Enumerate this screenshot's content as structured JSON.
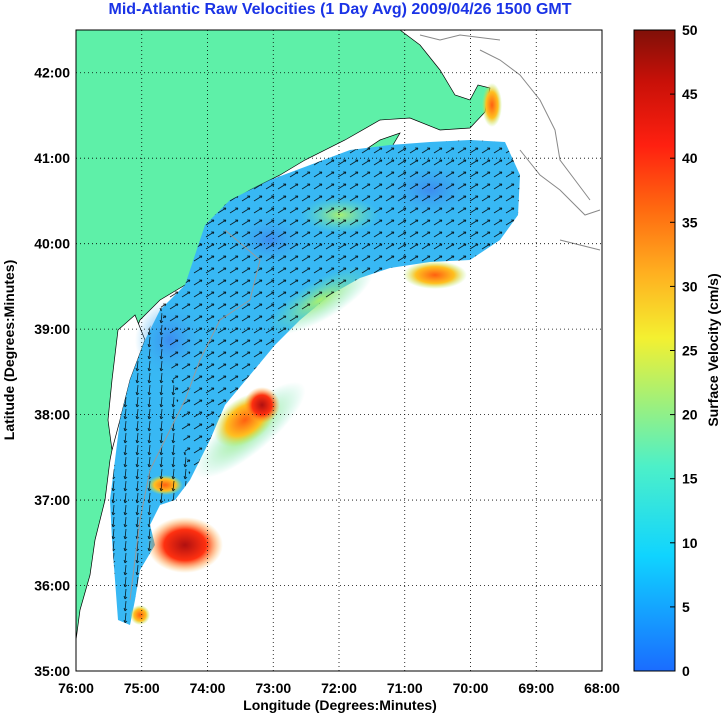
{
  "title": "Mid-Atlantic Raw Velocities (1 Day Avg) 2009/04/26 1500 GMT",
  "xlabel": "Longitude (Degrees:Minutes)",
  "ylabel": "Latitude (Degrees:Minutes)",
  "colorbar_label": "Surface Velocity (cm/s)",
  "x_ticks": [
    "76:00",
    "75:00",
    "74:00",
    "73:00",
    "72:00",
    "71:00",
    "70:00",
    "69:00",
    "68:00"
  ],
  "y_ticks": [
    "42:00",
    "41:00",
    "40:00",
    "39:00",
    "38:00",
    "37:00",
    "36:00",
    "35:00"
  ],
  "colorbar_ticks": [
    "50",
    "45",
    "40",
    "35",
    "30",
    "25",
    "20",
    "15",
    "10",
    "5",
    "0"
  ],
  "colors": {
    "land": "#5ef0a8",
    "title": "#1a33e6",
    "grid": "#000000"
  },
  "chart_data": {
    "type": "heatmap",
    "title": "Mid-Atlantic Raw Velocities (1 Day Avg) 2009/04/26 1500 GMT",
    "xlabel": "Longitude (Degrees:Minutes)",
    "ylabel": "Latitude (Degrees:Minutes)",
    "xlim": [
      -76,
      -68
    ],
    "ylim": [
      35,
      42.5
    ],
    "colorbar": {
      "label": "Surface Velocity (cm/s)",
      "range": [
        0,
        50
      ]
    },
    "grid": true
  }
}
